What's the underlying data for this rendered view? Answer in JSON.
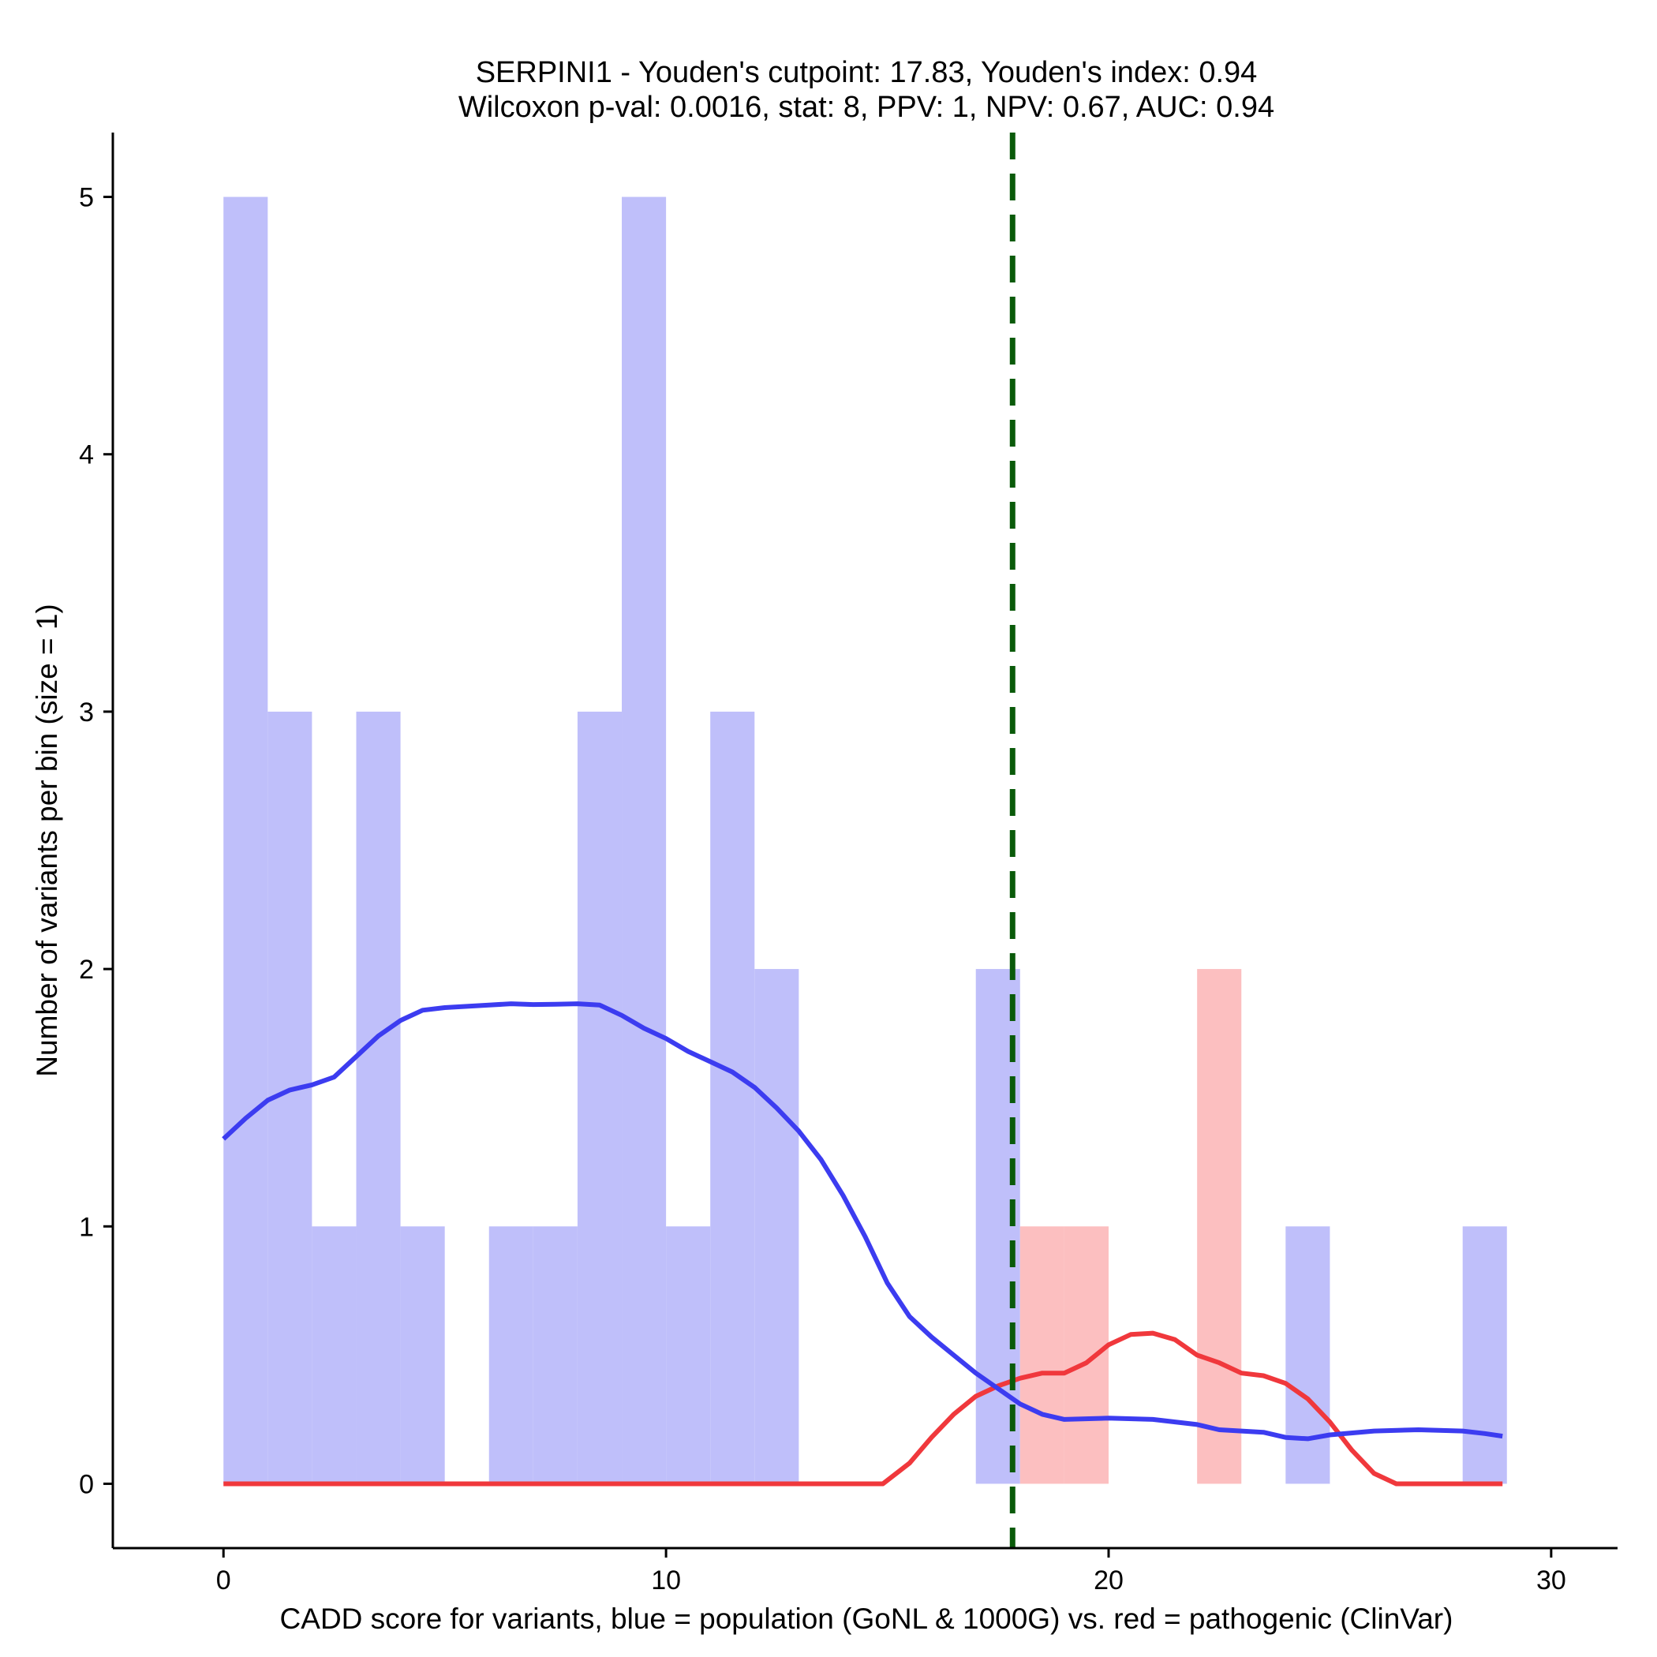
{
  "chart_data": {
    "type": "histogram",
    "title_lines": [
      "SERPINI1 - Youden's cutpoint: 17.83, Youden's index: 0.94",
      "Wilcoxon p-val: 0.0016, stat: 8, PPV: 1, NPV: 0.67, AUC: 0.94"
    ],
    "xlabel": "CADD score for variants, blue = population (GoNL & 1000G) vs. red = pathogenic (ClinVar)",
    "ylabel": "Number of variants per bin (size = 1)",
    "xlim": [
      -2.5,
      31.5
    ],
    "ylim": [
      -0.25,
      5.25
    ],
    "x_ticks": [
      0,
      10,
      20,
      30
    ],
    "y_ticks": [
      0,
      1,
      2,
      3,
      4,
      5
    ],
    "bin_width": 1,
    "cutpoint": 17.83,
    "colors": {
      "population_bar": "#bfbffa",
      "pathogenic_bar": "#fcbfc0",
      "population_line": "#3c3cf0",
      "pathogenic_line": "#f0383c",
      "cutpoint_line": "#0a5a0a"
    },
    "series": [
      {
        "name": "population (GoNL & 1000G)",
        "bins": [
          {
            "x": 0,
            "count": 5
          },
          {
            "x": 1,
            "count": 3
          },
          {
            "x": 2,
            "count": 1
          },
          {
            "x": 3,
            "count": 3
          },
          {
            "x": 4,
            "count": 1
          },
          {
            "x": 6,
            "count": 1
          },
          {
            "x": 7,
            "count": 1
          },
          {
            "x": 8,
            "count": 3
          },
          {
            "x": 9,
            "count": 5
          },
          {
            "x": 10,
            "count": 1
          },
          {
            "x": 11,
            "count": 3
          },
          {
            "x": 12,
            "count": 2
          },
          {
            "x": 17,
            "count": 2
          },
          {
            "x": 24,
            "count": 1
          },
          {
            "x": 28,
            "count": 1
          }
        ],
        "density_curve": [
          [
            0,
            1.34
          ],
          [
            0.5,
            1.42
          ],
          [
            1,
            1.49
          ],
          [
            1.5,
            1.53
          ],
          [
            2,
            1.55
          ],
          [
            2.5,
            1.58
          ],
          [
            3,
            1.66
          ],
          [
            3.5,
            1.74
          ],
          [
            4,
            1.8
          ],
          [
            4.5,
            1.84
          ],
          [
            5,
            1.85
          ],
          [
            5.5,
            1.855
          ],
          [
            6,
            1.86
          ],
          [
            6.5,
            1.865
          ],
          [
            7,
            1.862
          ],
          [
            7.5,
            1.863
          ],
          [
            8,
            1.865
          ],
          [
            8.5,
            1.86
          ],
          [
            9,
            1.82
          ],
          [
            9.5,
            1.77
          ],
          [
            10,
            1.73
          ],
          [
            10.5,
            1.68
          ],
          [
            11,
            1.64
          ],
          [
            11.5,
            1.6
          ],
          [
            12,
            1.54
          ],
          [
            12.5,
            1.46
          ],
          [
            13,
            1.37
          ],
          [
            13.5,
            1.26
          ],
          [
            14,
            1.12
          ],
          [
            14.5,
            0.96
          ],
          [
            15,
            0.78
          ],
          [
            15.5,
            0.65
          ],
          [
            16,
            0.57
          ],
          [
            16.5,
            0.5
          ],
          [
            17,
            0.43
          ],
          [
            17.5,
            0.37
          ],
          [
            18,
            0.31
          ],
          [
            18.5,
            0.27
          ],
          [
            19,
            0.25
          ],
          [
            20,
            0.255
          ],
          [
            21,
            0.25
          ],
          [
            22,
            0.23
          ],
          [
            22.5,
            0.21
          ],
          [
            23,
            0.205
          ],
          [
            23.5,
            0.2
          ],
          [
            24,
            0.18
          ],
          [
            24.5,
            0.175
          ],
          [
            25,
            0.19
          ],
          [
            26,
            0.205
          ],
          [
            27,
            0.21
          ],
          [
            28,
            0.205
          ],
          [
            28.5,
            0.195
          ],
          [
            28.9,
            0.185
          ]
        ]
      },
      {
        "name": "pathogenic (ClinVar)",
        "bins": [
          {
            "x": 18,
            "count": 1
          },
          {
            "x": 19,
            "count": 1
          },
          {
            "x": 22,
            "count": 2
          }
        ],
        "density_curve": [
          [
            0,
            0
          ],
          [
            5,
            0
          ],
          [
            10,
            0
          ],
          [
            14.9,
            0
          ],
          [
            15.5,
            0.08
          ],
          [
            16,
            0.18
          ],
          [
            16.5,
            0.27
          ],
          [
            17,
            0.34
          ],
          [
            17.5,
            0.38
          ],
          [
            18,
            0.41
          ],
          [
            18.5,
            0.43
          ],
          [
            19,
            0.43
          ],
          [
            19.5,
            0.47
          ],
          [
            20,
            0.54
          ],
          [
            20.5,
            0.58
          ],
          [
            21,
            0.585
          ],
          [
            21.5,
            0.56
          ],
          [
            22,
            0.5
          ],
          [
            22.5,
            0.47
          ],
          [
            23,
            0.43
          ],
          [
            23.5,
            0.42
          ],
          [
            24,
            0.39
          ],
          [
            24.5,
            0.33
          ],
          [
            25,
            0.24
          ],
          [
            25.5,
            0.13
          ],
          [
            26,
            0.04
          ],
          [
            26.5,
            0
          ],
          [
            27,
            0
          ],
          [
            28.9,
            0
          ]
        ]
      }
    ]
  }
}
